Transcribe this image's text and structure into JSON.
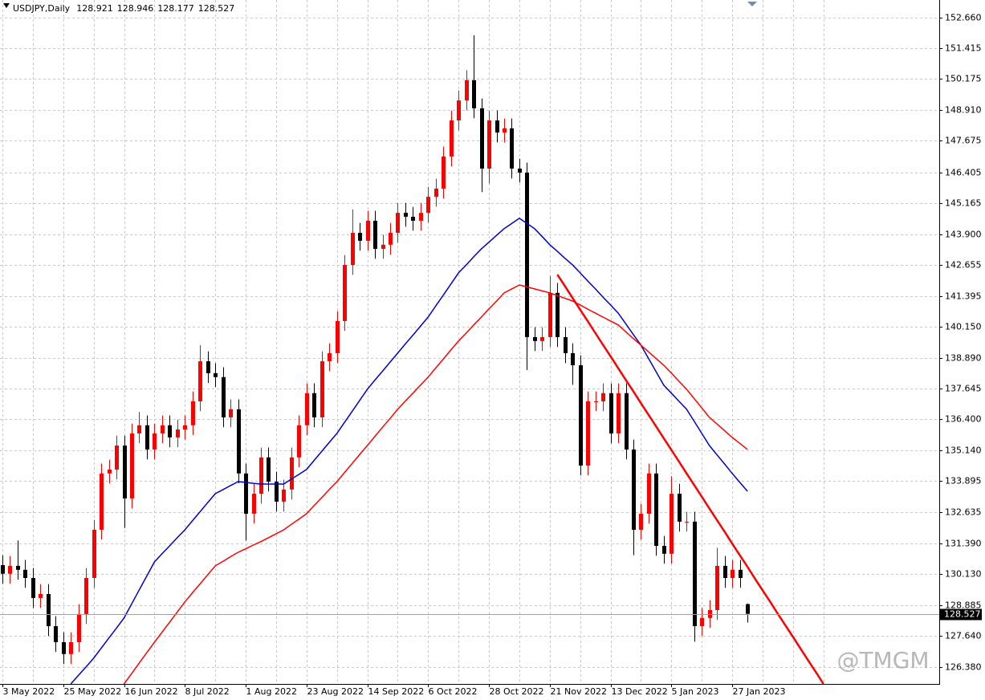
{
  "chart_data": {
    "type": "candlestick",
    "title": "USDJPY,Daily",
    "watermark": "@TMGM",
    "up_color": "#ff0000",
    "down_color": "#000000",
    "grid": true,
    "categories": [
      "3 May 2022",
      null,
      null,
      null,
      null,
      null,
      null,
      null,
      "25 May 2022",
      null,
      null,
      null,
      null,
      null,
      null,
      null,
      "16 Jun 2022",
      null,
      null,
      null,
      null,
      null,
      null,
      null,
      "8 Jul 2022",
      null,
      null,
      null,
      null,
      null,
      null,
      null,
      "1 Aug 2022",
      null,
      null,
      null,
      null,
      null,
      null,
      null,
      "23 Aug 2022",
      null,
      null,
      null,
      null,
      null,
      null,
      null,
      "14 Sep 2022",
      null,
      null,
      null,
      null,
      null,
      null,
      null,
      "6 Oct 2022",
      null,
      null,
      null,
      null,
      null,
      null,
      null,
      "28 Oct 2022",
      null,
      null,
      null,
      null,
      null,
      null,
      null,
      "21 Nov 2022",
      null,
      null,
      null,
      null,
      null,
      null,
      null,
      "13 Dec 2022",
      null,
      null,
      null,
      null,
      null,
      null,
      null,
      "5 Jan 2023",
      null,
      null,
      null,
      null,
      null,
      null,
      null,
      "27 Jan 2023",
      null,
      null,
      null,
      null,
      null,
      null,
      null,
      null,
      null,
      null,
      null,
      null
    ],
    "open": [
      130.5,
      130.15,
      130.47,
      130.31,
      129.98,
      129.17,
      129.33,
      128.03,
      127.38,
      126.9,
      127.38,
      128.52,
      129.98,
      131.93,
      134.21,
      134.37,
      135.34,
      133.2,
      135.83,
      136.16,
      135.18,
      135.83,
      136.16,
      135.67,
      135.99,
      136.16,
      137.13,
      138.75,
      138.27,
      138.11,
      136.48,
      136.81,
      134.21,
      132.58,
      133.39,
      134.86,
      133.88,
      133.07,
      133.56,
      134.86,
      136.16,
      137.46,
      136.48,
      138.75,
      139.08,
      140.38,
      142.65,
      143.95,
      143.63,
      144.44,
      143.3,
      143.47,
      143.95,
      144.76,
      144.6,
      144.44,
      144.76,
      145.41,
      145.74,
      147.04,
      148.5,
      149.31,
      150.13,
      148.99,
      146.55,
      148.5,
      148.01,
      148.18,
      146.55,
      146.39,
      139.73,
      139.57,
      139.73,
      141.52,
      139.73,
      139.08,
      138.59,
      134.53,
      137.13,
      137.13,
      137.46,
      135.83,
      137.46,
      135.18,
      131.93,
      132.58,
      134.21,
      131.28,
      130.96,
      133.39,
      132.26,
      132.26,
      128.03,
      128.36,
      128.68,
      130.47,
      129.98,
      130.31,
      128.921,
      null,
      null,
      null,
      null,
      null,
      null,
      null,
      null,
      null,
      null
    ],
    "high": [
      130.9,
      130.87,
      131.5,
      130.71,
      130.38,
      129.73,
      129.73,
      128.43,
      127.78,
      127.78,
      128.92,
      130.38,
      132.33,
      134.61,
      134.77,
      135.74,
      135.74,
      136.23,
      136.7,
      136.56,
      136.23,
      136.56,
      136.56,
      136.39,
      136.56,
      137.53,
      139.4,
      139.15,
      138.67,
      138.51,
      137.21,
      137.21,
      134.61,
      133.79,
      135.26,
      135.26,
      134.28,
      133.96,
      135.26,
      136.56,
      137.86,
      137.86,
      139.15,
      139.48,
      140.78,
      143.05,
      144.9,
      144.35,
      144.84,
      144.84,
      143.87,
      144.35,
      145.16,
      145.16,
      145.0,
      145.16,
      145.81,
      146.14,
      147.44,
      148.9,
      149.71,
      150.53,
      151.95,
      149.39,
      148.9,
      148.9,
      148.58,
      148.58,
      146.95,
      146.79,
      140.13,
      140.13,
      142.2,
      141.92,
      140.13,
      139.48,
      138.99,
      137.53,
      137.53,
      137.86,
      137.86,
      137.86,
      137.86,
      135.58,
      132.98,
      134.61,
      134.61,
      131.68,
      134.1,
      133.79,
      132.66,
      132.66,
      128.76,
      129.08,
      131.2,
      130.87,
      130.71,
      130.71,
      128.946,
      null,
      null,
      null,
      null,
      null,
      null,
      null,
      null,
      null,
      null
    ],
    "low": [
      129.75,
      129.75,
      129.91,
      129.58,
      128.77,
      128.77,
      127.63,
      126.98,
      126.5,
      126.5,
      126.98,
      128.12,
      129.58,
      131.53,
      133.81,
      133.97,
      132.0,
      132.8,
      135.43,
      134.78,
      134.78,
      135.43,
      135.27,
      135.27,
      135.59,
      135.76,
      136.73,
      137.87,
      137.71,
      136.08,
      136.08,
      133.81,
      131.5,
      132.18,
      132.99,
      133.48,
      132.67,
      132.67,
      133.16,
      134.46,
      135.76,
      136.08,
      136.08,
      138.35,
      138.68,
      139.98,
      142.25,
      143.23,
      143.23,
      142.9,
      142.9,
      143.07,
      143.55,
      144.2,
      144.04,
      144.04,
      144.36,
      145.01,
      145.34,
      146.64,
      148.1,
      148.91,
      148.59,
      145.6,
      145.95,
      147.61,
      147.61,
      146.15,
      145.99,
      138.4,
      139.17,
      139.17,
      139.33,
      139.33,
      138.68,
      137.8,
      134.13,
      134.13,
      136.73,
      136.73,
      135.43,
      135.43,
      134.78,
      130.9,
      131.53,
      132.18,
      130.88,
      130.56,
      130.56,
      131.86,
      131.86,
      127.4,
      127.63,
      127.96,
      128.28,
      129.58,
      129.58,
      129.58,
      128.177,
      null,
      null,
      null,
      null,
      null,
      null,
      null,
      null,
      null,
      null
    ],
    "close": [
      130.15,
      130.47,
      130.31,
      129.98,
      129.17,
      129.33,
      128.03,
      127.38,
      126.9,
      127.38,
      128.52,
      129.98,
      131.93,
      134.21,
      134.37,
      135.34,
      133.2,
      135.83,
      136.16,
      135.18,
      135.83,
      136.16,
      135.67,
      135.99,
      136.16,
      137.13,
      138.75,
      138.27,
      138.11,
      136.48,
      136.81,
      134.21,
      132.58,
      133.39,
      134.86,
      133.88,
      133.07,
      133.56,
      134.86,
      136.16,
      137.46,
      136.48,
      138.75,
      139.08,
      140.38,
      142.65,
      143.95,
      143.63,
      144.44,
      143.3,
      143.47,
      143.95,
      144.76,
      144.6,
      144.44,
      144.76,
      145.41,
      145.74,
      147.04,
      148.5,
      149.31,
      150.13,
      148.99,
      146.55,
      148.5,
      148.01,
      148.18,
      146.55,
      146.39,
      139.73,
      139.57,
      139.73,
      141.52,
      139.73,
      139.08,
      138.59,
      134.53,
      137.13,
      137.13,
      137.46,
      135.83,
      137.46,
      135.18,
      131.93,
      132.58,
      134.21,
      131.28,
      130.96,
      133.39,
      132.26,
      132.26,
      128.03,
      128.36,
      128.68,
      130.47,
      129.98,
      130.31,
      129.98,
      128.527,
      null,
      null,
      null,
      null,
      null,
      null,
      null,
      null,
      null,
      null
    ],
    "series": [
      {
        "color": "#0000cc",
        "values": [
          null,
          null,
          null,
          null,
          null,
          null,
          null,
          null,
          null,
          125.69,
          126.04,
          126.38,
          126.73,
          127.14,
          127.55,
          127.95,
          128.36,
          128.93,
          129.5,
          130.06,
          130.63,
          130.96,
          131.28,
          131.61,
          131.93,
          132.3,
          132.66,
          133.03,
          133.39,
          133.55,
          133.72,
          133.88,
          133.85,
          133.81,
          133.78,
          133.78,
          133.78,
          133.78,
          133.98,
          134.17,
          134.37,
          134.74,
          135.1,
          135.47,
          135.83,
          136.28,
          136.72,
          137.17,
          137.62,
          137.99,
          138.35,
          138.72,
          139.08,
          139.45,
          139.81,
          140.18,
          140.54,
          140.99,
          141.43,
          141.88,
          142.33,
          142.65,
          142.98,
          143.3,
          143.57,
          143.85,
          144.12,
          144.33,
          144.54,
          144.33,
          144.12,
          143.8,
          143.47,
          143.2,
          142.92,
          142.65,
          142.33,
          142.0,
          141.68,
          141.35,
          141.03,
          140.7,
          140.27,
          139.83,
          139.4,
          138.86,
          138.32,
          137.78,
          137.46,
          137.13,
          136.81,
          136.32,
          135.83,
          135.34,
          134.96,
          134.59,
          134.21,
          133.85,
          133.49,
          null,
          null,
          null,
          null,
          null,
          null,
          null,
          null,
          null,
          null
        ]
      },
      {
        "color": "#ff0000",
        "values": [
          null,
          null,
          null,
          null,
          null,
          null,
          null,
          null,
          null,
          null,
          null,
          null,
          null,
          null,
          null,
          null,
          125.69,
          126.11,
          126.54,
          126.96,
          127.38,
          127.79,
          128.19,
          128.6,
          129.01,
          129.38,
          129.74,
          130.11,
          130.47,
          130.65,
          130.84,
          131.02,
          131.16,
          131.31,
          131.45,
          131.61,
          131.77,
          131.93,
          132.15,
          132.36,
          132.58,
          132.91,
          133.23,
          133.56,
          133.88,
          134.25,
          134.61,
          134.98,
          135.34,
          135.71,
          136.08,
          136.44,
          136.81,
          137.14,
          137.46,
          137.79,
          138.11,
          138.48,
          138.84,
          139.21,
          139.57,
          139.89,
          140.22,
          140.54,
          140.87,
          141.19,
          141.52,
          141.68,
          141.84,
          141.76,
          141.68,
          141.6,
          141.52,
          141.41,
          141.3,
          141.19,
          141.03,
          140.86,
          140.7,
          140.54,
          140.38,
          140.22,
          139.95,
          139.67,
          139.4,
          139.13,
          138.86,
          138.59,
          138.27,
          137.94,
          137.62,
          137.24,
          136.86,
          136.48,
          136.21,
          135.94,
          135.67,
          135.43,
          135.18,
          null,
          null,
          null,
          null,
          null,
          null,
          null,
          null,
          null,
          null
        ]
      },
      {
        "color": "#ff0000",
        "values": [
          null,
          null,
          null,
          null,
          null,
          null,
          null,
          null,
          null,
          null,
          null,
          null,
          null,
          null,
          null,
          null,
          null,
          null,
          null,
          null,
          null,
          null,
          null,
          null,
          null,
          null,
          null,
          null,
          null,
          null,
          null,
          null,
          null,
          null,
          null,
          null,
          null,
          null,
          null,
          null,
          null,
          null,
          null,
          null,
          null,
          null,
          null,
          null,
          null,
          null,
          null,
          null,
          null,
          null,
          null,
          null,
          null,
          null,
          null,
          null,
          null,
          null,
          null,
          null,
          null,
          null,
          null,
          null,
          null,
          null,
          null,
          null,
          null,
          142.26,
          141.79,
          141.31,
          140.84,
          140.37,
          139.89,
          139.42,
          138.95,
          138.47,
          138.0,
          137.53,
          137.05,
          136.58,
          136.11,
          135.63,
          135.16,
          134.69,
          134.21,
          133.74,
          133.27,
          132.79,
          132.32,
          131.85,
          131.37,
          130.9,
          130.43,
          129.95,
          129.48,
          129.01,
          128.53,
          128.06,
          127.59,
          127.11,
          126.64,
          126.17,
          125.69
        ]
      }
    ],
    "ylim": [
      125.69,
      153.375
    ],
    "yticks": [
      {
        "value": 152.66,
        "label": "152.660"
      },
      {
        "value": 151.415,
        "label": "151.415"
      },
      {
        "value": 150.175,
        "label": "150.175"
      },
      {
        "value": 148.91,
        "label": "148.910"
      },
      {
        "value": 147.675,
        "label": "147.675"
      },
      {
        "value": 146.405,
        "label": "146.405"
      },
      {
        "value": 145.165,
        "label": "145.165"
      },
      {
        "value": 143.9,
        "label": "143.900"
      },
      {
        "value": 142.655,
        "label": "142.655"
      },
      {
        "value": 141.395,
        "label": "141.395"
      },
      {
        "value": 140.15,
        "label": "140.150"
      },
      {
        "value": 138.89,
        "label": "138.890"
      },
      {
        "value": 137.645,
        "label": "137.645"
      },
      {
        "value": 136.4,
        "label": "136.400"
      },
      {
        "value": 135.14,
        "label": "135.140"
      },
      {
        "value": 133.895,
        "label": "133.895"
      },
      {
        "value": 132.635,
        "label": "132.635"
      },
      {
        "value": 131.39,
        "label": "131.390"
      },
      {
        "value": 130.13,
        "label": "130.130"
      },
      {
        "value": 128.885,
        "label": "128.885"
      },
      {
        "value": 127.64,
        "label": "127.640"
      },
      {
        "value": 126.38,
        "label": "126.380"
      }
    ]
  }
}
